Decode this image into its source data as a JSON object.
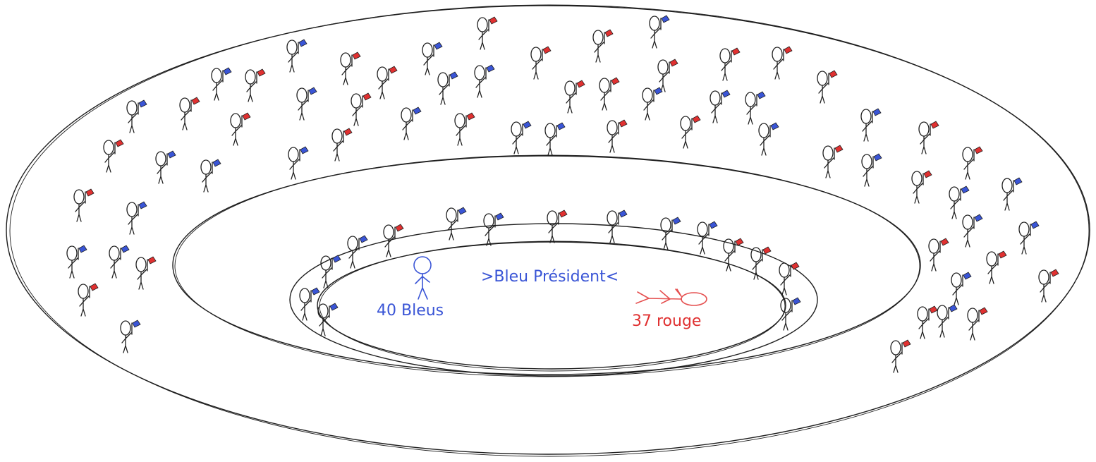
{
  "diagram": {
    "title": ">Bleu Président<",
    "blue_count_label": "40 Bleus",
    "red_count_label": "37 rouge",
    "colors": {
      "blue": "#3a55d6",
      "red": "#e03131",
      "ink": "#1e1e1e",
      "background": "#ffffff"
    },
    "zones": [
      "outer-stands",
      "inner-ring",
      "field-rings",
      "arena-center"
    ],
    "figures": {
      "standing_blue_figure": "stick-figure-standing",
      "fallen_red_figure": "stick-figure-fallen"
    }
  }
}
